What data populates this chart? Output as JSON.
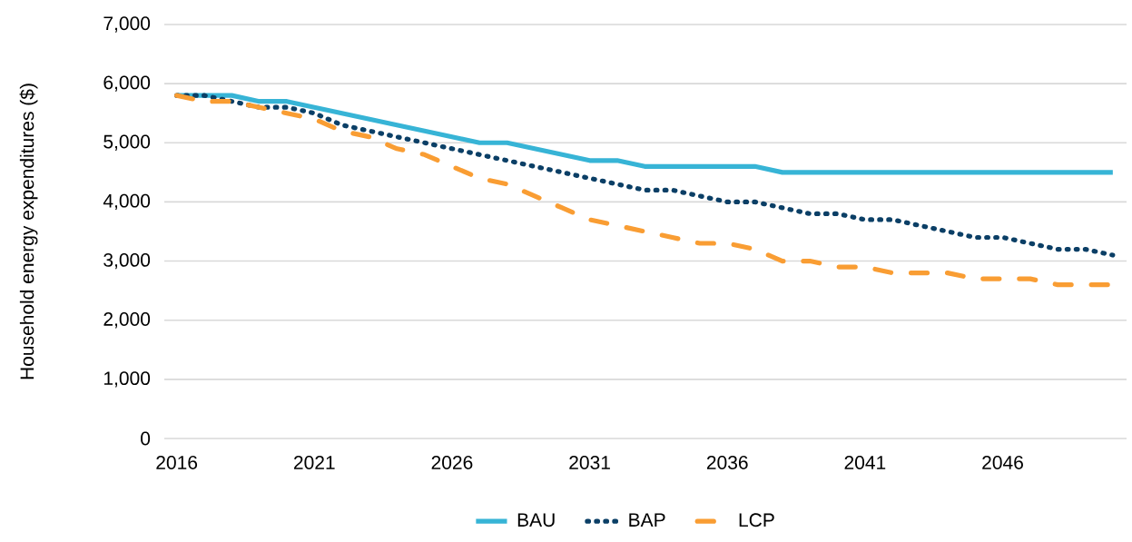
{
  "chart_data": {
    "type": "line",
    "ylabel": "Household energy expenditures ($)",
    "x": [
      2016,
      2017,
      2018,
      2019,
      2020,
      2021,
      2022,
      2023,
      2024,
      2025,
      2026,
      2027,
      2028,
      2029,
      2030,
      2031,
      2032,
      2033,
      2034,
      2035,
      2036,
      2037,
      2038,
      2039,
      2040,
      2041,
      2042,
      2043,
      2044,
      2045,
      2046,
      2047,
      2048,
      2049,
      2050
    ],
    "series": [
      {
        "name": "BAU",
        "color": "#37b4d6",
        "line_style": "solid",
        "values": [
          5800,
          5800,
          5800,
          5700,
          5700,
          5600,
          5500,
          5400,
          5300,
          5200,
          5100,
          5000,
          5000,
          4900,
          4800,
          4700,
          4700,
          4600,
          4600,
          4600,
          4600,
          4600,
          4500,
          4500,
          4500,
          4500,
          4500,
          4500,
          4500,
          4500,
          4500,
          4500,
          4500,
          4500,
          4500
        ]
      },
      {
        "name": "BAP",
        "color": "#0b3f66",
        "line_style": "dotted",
        "values": [
          5800,
          5800,
          5700,
          5600,
          5600,
          5500,
          5300,
          5200,
          5100,
          5000,
          4900,
          4800,
          4700,
          4600,
          4500,
          4400,
          4300,
          4200,
          4200,
          4100,
          4000,
          4000,
          3900,
          3800,
          3800,
          3700,
          3700,
          3600,
          3500,
          3400,
          3400,
          3300,
          3200,
          3200,
          3100
        ]
      },
      {
        "name": "LCP",
        "color": "#f99d33",
        "line_style": "dashed",
        "values": [
          5800,
          5700,
          5700,
          5600,
          5500,
          5400,
          5200,
          5100,
          4900,
          4800,
          4600,
          4400,
          4300,
          4100,
          3900,
          3700,
          3600,
          3500,
          3400,
          3300,
          3300,
          3200,
          3000,
          3000,
          2900,
          2900,
          2800,
          2800,
          2800,
          2700,
          2700,
          2700,
          2600,
          2600,
          2600
        ]
      }
    ],
    "xlim": [
      2015.55,
      2050.5
    ],
    "xticks": [
      2016,
      2021,
      2026,
      2031,
      2036,
      2041,
      2046
    ],
    "ylim": [
      0,
      7000
    ],
    "yticks": [
      {
        "value": 0,
        "label": "0"
      },
      {
        "value": 1000,
        "label": "1,000"
      },
      {
        "value": 2000,
        "label": "2,000"
      },
      {
        "value": 3000,
        "label": "3,000"
      },
      {
        "value": 4000,
        "label": "4,000"
      },
      {
        "value": 5000,
        "label": "5,000"
      },
      {
        "value": 6000,
        "label": "6,000"
      },
      {
        "value": 7000,
        "label": "7,000"
      }
    ],
    "grid": "y",
    "legend": "bottom"
  }
}
